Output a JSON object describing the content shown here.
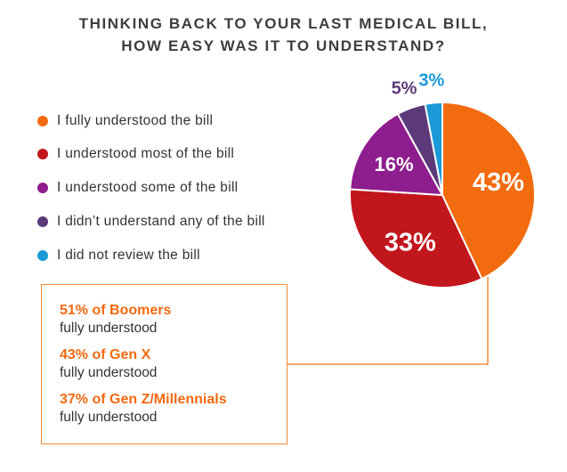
{
  "header": {
    "title_line1": "THINKING BACK TO YOUR LAST MEDICAL BILL,",
    "title_line2": "HOW EASY WAS IT TO UNDERSTAND?"
  },
  "legend": {
    "items": [
      {
        "label": "I fully understood the bill",
        "color": "#f26b0f"
      },
      {
        "label": "I understood most of the bill",
        "color": "#c2161d"
      },
      {
        "label": "I understood some of the bill",
        "color": "#8e1d8e"
      },
      {
        "label": "I didn’t understand any of the bill",
        "color": "#5c3a7a"
      },
      {
        "label": "I did not review the bill",
        "color": "#1a9ad6"
      }
    ]
  },
  "chart_data": {
    "type": "pie",
    "title": "THINKING BACK TO YOUR LAST MEDICAL BILL, HOW EASY WAS IT TO UNDERSTAND?",
    "slices": [
      {
        "label": "I fully understood the bill",
        "value": 43,
        "display": "43%",
        "color": "#f26b0f"
      },
      {
        "label": "I understood most of the bill",
        "value": 33,
        "display": "33%",
        "color": "#c2161d"
      },
      {
        "label": "I understood some of the bill",
        "value": 16,
        "display": "16%",
        "color": "#8e1d8e"
      },
      {
        "label": "I didn’t understand any of the bill",
        "value": 5,
        "display": "5%",
        "color": "#5c3a7a"
      },
      {
        "label": "I did not review the bill",
        "value": 3,
        "display": "3%",
        "color": "#1a9ad6"
      }
    ],
    "legend_position": "left"
  },
  "callout": {
    "stats": [
      {
        "headline": "51% of Boomers",
        "subtext": "fully understood"
      },
      {
        "headline": "43% of Gen X",
        "subtext": "fully understood"
      },
      {
        "headline": "37% of Gen Z/Millennials",
        "subtext": "fully understood"
      }
    ],
    "accent_color": "#f26a10"
  }
}
